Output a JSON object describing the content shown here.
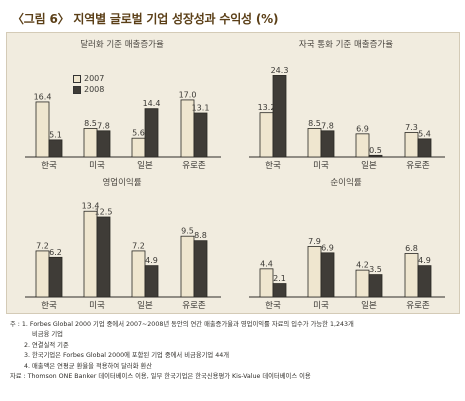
{
  "title": "〈그림 6〉 지역별 글로벌 기업 성장성과 수익성 (%)",
  "colors": {
    "y2007": "#efe6cf",
    "y2008": "#3f3c37",
    "frame": "#f1ecdf"
  },
  "legend": [
    {
      "label": "2007",
      "color": "#efe6cf"
    },
    {
      "label": "2008",
      "color": "#3f3c37"
    }
  ],
  "chart_data": [
    {
      "type": "bar",
      "title": "달러화 기준 매출증가율",
      "categories": [
        "한국",
        "미국",
        "일본",
        "유로존"
      ],
      "series": [
        {
          "name": "2007",
          "values": [
            16.4,
            8.5,
            5.6,
            17.0
          ]
        },
        {
          "name": "2008",
          "values": [
            5.1,
            7.8,
            14.4,
            13.1
          ]
        }
      ],
      "value_labels": [
        [
          "16.4",
          "8.5",
          "5.6",
          "17.0"
        ],
        [
          "5.1",
          "7.8",
          "14.4",
          "13.1"
        ]
      ],
      "ylim": [
        0,
        28
      ],
      "legend_position": "top-left"
    },
    {
      "type": "bar",
      "title": "자국 통화 기준 매출증가율",
      "categories": [
        "한국",
        "미국",
        "일본",
        "유로존"
      ],
      "series": [
        {
          "name": "2007",
          "values": [
            13.2,
            8.5,
            6.9,
            7.3
          ]
        },
        {
          "name": "2008",
          "values": [
            24.3,
            7.8,
            0.5,
            5.4
          ]
        }
      ],
      "value_labels": [
        [
          "13.2",
          "8.5",
          "6.9",
          "7.3"
        ],
        [
          "24.3",
          "7.8",
          "0.5",
          "5.4"
        ]
      ],
      "ylim": [
        0,
        28
      ]
    },
    {
      "type": "bar",
      "title": "영업이익률",
      "categories": [
        "한국",
        "미국",
        "일본",
        "유로존"
      ],
      "series": [
        {
          "name": "2007",
          "values": [
            7.2,
            13.4,
            7.2,
            9.5
          ]
        },
        {
          "name": "2008",
          "values": [
            6.2,
            12.5,
            4.9,
            8.8
          ]
        }
      ],
      "value_labels": [
        [
          "7.2",
          "13.4",
          "7.2",
          "9.5"
        ],
        [
          "6.2",
          "12.5",
          "4.9",
          "8.8"
        ]
      ],
      "ylim": [
        0,
        15
      ]
    },
    {
      "type": "bar",
      "title": "순이익률",
      "categories": [
        "한국",
        "미국",
        "일본",
        "유로존"
      ],
      "series": [
        {
          "name": "2007",
          "values": [
            4.4,
            7.9,
            4.2,
            6.8
          ]
        },
        {
          "name": "2008",
          "values": [
            2.1,
            6.9,
            3.5,
            4.9
          ]
        }
      ],
      "value_labels": [
        [
          "4.4",
          "7.9",
          "4.2",
          "6.8"
        ],
        [
          "2.1",
          "6.9",
          "3.5",
          "4.9"
        ]
      ],
      "ylim": [
        0,
        15
      ]
    }
  ],
  "notes": {
    "note1": "주 : 1. Forbes Global 2000 기업 중에서 2007~2008년 동안의 연간 매출증가율과 영업이익률 자료의 입수가 가능한 1,243개",
    "note1_cont": "비금융 기업",
    "note2": "2. 연결실적 기준",
    "note3": "3. 한국기업은 Forbes Global 2000에 포함된 기업 중에서 비금융기업 44개",
    "note4": "4. 매출액은 연평균 환율을 적용하여 달러화 환산",
    "source": "자료 : Thomson ONE Banker 데이터베이스 이용, 일부 한국기업은 한국신용평가 Kis-Value 데이터베이스 이용"
  }
}
